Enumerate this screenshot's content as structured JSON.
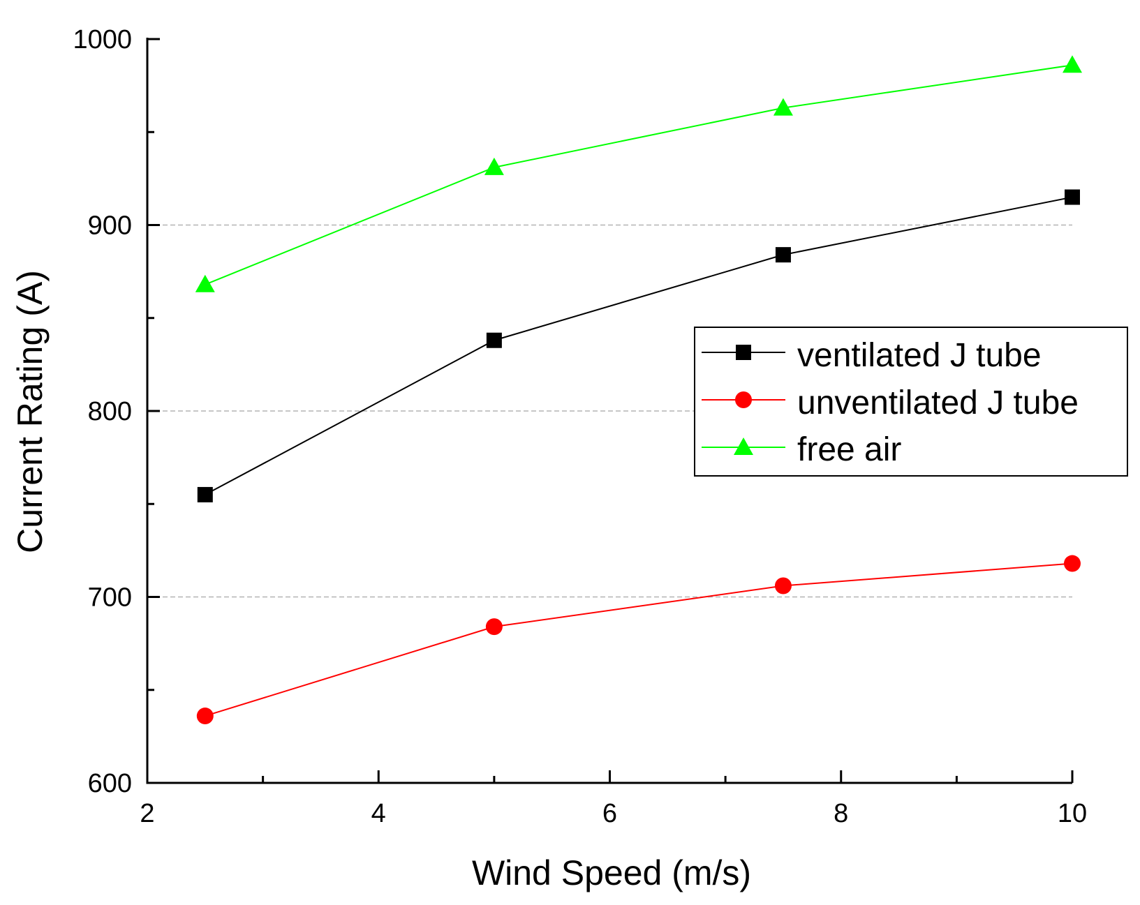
{
  "chart_data": {
    "type": "line",
    "title": "",
    "xlabel": "Wind Speed (m/s)",
    "ylabel": "Current Rating (A)",
    "xlim": [
      2,
      10
    ],
    "ylim": [
      600,
      1000
    ],
    "xticks": [
      2,
      4,
      6,
      8,
      10
    ],
    "yticks": [
      600,
      700,
      800,
      900,
      1000
    ],
    "ygrid": [
      700,
      800,
      900
    ],
    "legend_position": "center-right",
    "series": [
      {
        "name": "ventilated J tube",
        "color": "#000000",
        "marker": "square",
        "x": [
          2.5,
          5,
          7.5,
          10
        ],
        "y": [
          755,
          838,
          884,
          915
        ]
      },
      {
        "name": "unventilated J tube",
        "color": "#ff0000",
        "marker": "circle",
        "x": [
          2.5,
          5,
          7.5,
          10
        ],
        "y": [
          636,
          684,
          706,
          718
        ]
      },
      {
        "name": "free air",
        "color": "#00ff00",
        "marker": "triangle",
        "x": [
          2.5,
          5,
          7.5,
          10
        ],
        "y": [
          868,
          931,
          963,
          986
        ]
      }
    ]
  }
}
